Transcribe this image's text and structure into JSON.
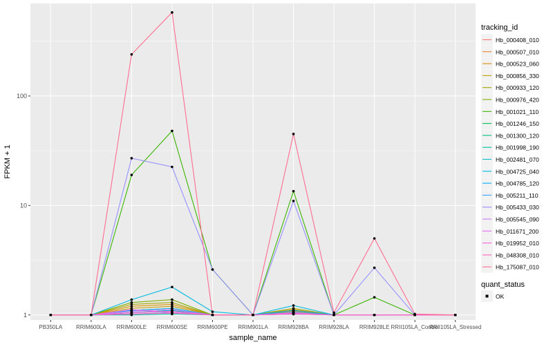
{
  "chart_data": {
    "type": "line",
    "xlabel": "sample_name",
    "ylabel": "FPKM + 1",
    "y_scale": "log10",
    "ylim": [
      0.9,
      700
    ],
    "y_ticks": [
      1,
      10,
      100
    ],
    "y_tick_labels": [
      "1",
      "10",
      "100"
    ],
    "background_color": "#EBEBEB",
    "grid": true,
    "legend_position": "right",
    "categories": [
      "PB350LA",
      "RRIM600LA",
      "RRIM600LE",
      "RRIM600SE",
      "RRIM600PE",
      "RRIM901LA",
      "RRIM928BA",
      "RRIM928LA",
      "RRIM928LE",
      "RRII105LA_Control",
      "RRII105LA_Stressed"
    ],
    "series": [
      {
        "name": "Hb_000408_010",
        "color": "#F8766D",
        "values": [
          1,
          1,
          1.05,
          1.08,
          1,
          1,
          1.05,
          1,
          1,
          1,
          1
        ]
      },
      {
        "name": "Hb_000507_010",
        "color": "#EA8331",
        "values": [
          1,
          1,
          1.1,
          1.15,
          1,
          1,
          1.08,
          1,
          1,
          1,
          1
        ]
      },
      {
        "name": "Hb_000523_060",
        "color": "#D89000",
        "values": [
          1,
          1,
          1.2,
          1.25,
          1,
          1,
          1.1,
          1,
          1,
          1,
          1
        ]
      },
      {
        "name": "Hb_000856_330",
        "color": "#C09B00",
        "values": [
          1,
          1,
          1.15,
          1.2,
          1,
          1,
          1.12,
          1,
          1,
          1,
          1
        ]
      },
      {
        "name": "Hb_000933_120",
        "color": "#A3A500",
        "values": [
          1,
          1,
          1.25,
          1.3,
          1,
          1,
          1.15,
          1,
          1,
          1,
          1
        ]
      },
      {
        "name": "Hb_000976_420",
        "color": "#7CAE00",
        "values": [
          1,
          1,
          1.3,
          1.38,
          1,
          1,
          1.1,
          1,
          1,
          1,
          1
        ]
      },
      {
        "name": "Hb_001021_110",
        "color": "#39B600",
        "values": [
          1,
          1,
          19,
          48,
          2.6,
          1,
          13.5,
          1,
          1.45,
          1,
          1
        ]
      },
      {
        "name": "Hb_001246_150",
        "color": "#00BB4E",
        "values": [
          1,
          1,
          1.05,
          1.1,
          1,
          1,
          1.05,
          1,
          1,
          1,
          1
        ]
      },
      {
        "name": "Hb_001300_120",
        "color": "#00BF7D",
        "values": [
          1,
          1,
          1.02,
          1.05,
          1,
          1,
          1.03,
          1,
          1,
          1,
          1
        ]
      },
      {
        "name": "Hb_001998_190",
        "color": "#00C1A3",
        "values": [
          1,
          1,
          1,
          1.02,
          1,
          1,
          1.02,
          1,
          1,
          1,
          1
        ]
      },
      {
        "name": "Hb_002481_070",
        "color": "#00BFC4",
        "values": [
          1,
          1,
          1.05,
          1.1,
          1,
          1,
          1.06,
          1,
          1,
          1,
          1
        ]
      },
      {
        "name": "Hb_004725_040",
        "color": "#00BAE0",
        "values": [
          1,
          1,
          1.38,
          1.8,
          1.07,
          1,
          1.22,
          1,
          1,
          1,
          1
        ]
      },
      {
        "name": "Hb_004785_120",
        "color": "#00B0F6",
        "values": [
          1,
          1,
          1.1,
          1.15,
          1,
          1,
          1.1,
          1,
          1,
          1,
          1
        ]
      },
      {
        "name": "Hb_005211_110",
        "color": "#35A2FF",
        "values": [
          1,
          1,
          1.02,
          1.05,
          1,
          1,
          1.02,
          1,
          1,
          1,
          1
        ]
      },
      {
        "name": "Hb_005433_030",
        "color": "#9590FF",
        "values": [
          1,
          1,
          27,
          22.5,
          2.6,
          1,
          11,
          1,
          2.7,
          1,
          1
        ]
      },
      {
        "name": "Hb_005545_090",
        "color": "#C77CFF",
        "values": [
          1,
          1,
          1.08,
          1.12,
          1,
          1,
          1.05,
          1,
          1,
          1,
          1
        ]
      },
      {
        "name": "Hb_011671_200",
        "color": "#E76BF3",
        "values": [
          1,
          1,
          1.12,
          1.05,
          1,
          1,
          1.04,
          1,
          1,
          1,
          1
        ]
      },
      {
        "name": "Hb_019952_010",
        "color": "#FA62DB",
        "values": [
          1,
          1,
          1.05,
          1.08,
          1,
          1,
          1.03,
          1,
          1,
          1,
          1
        ]
      },
      {
        "name": "Hb_048308_010",
        "color": "#FF62BC",
        "values": [
          1,
          1,
          1.02,
          1.04,
          1,
          1,
          1.02,
          1,
          1,
          1,
          1
        ]
      },
      {
        "name": "Hb_175087_010",
        "color": "#FF6C91",
        "values": [
          1,
          1,
          240,
          580,
          1,
          1,
          45,
          1.05,
          5,
          1.02,
          1
        ]
      }
    ],
    "legend": {
      "tracking_title": "tracking_id",
      "status_title": "quant_status",
      "status_items": [
        "OK"
      ]
    }
  }
}
